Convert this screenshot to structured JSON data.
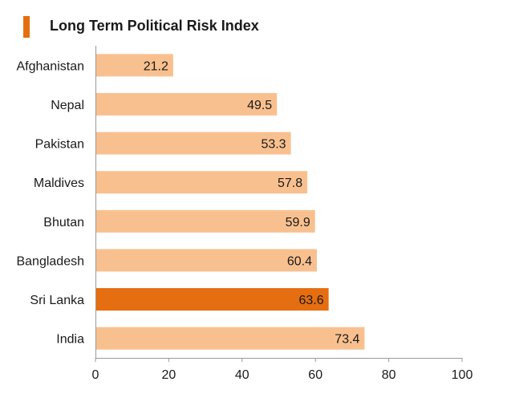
{
  "title": "Long Term Political Risk Index",
  "colors": {
    "bar": "#f9c08f",
    "highlight": "#e56e10",
    "title_accent": "#e56e10",
    "axis": "#999999",
    "text": "#1a1a1a"
  },
  "chart_data": {
    "type": "bar",
    "orientation": "horizontal",
    "title": "Long Term Political Risk Index",
    "categories": [
      "Afghanistan",
      "Nepal",
      "Pakistan",
      "Maldives",
      "Bhutan",
      "Bangladesh",
      "Sri Lanka",
      "India"
    ],
    "values": [
      21.2,
      49.5,
      53.3,
      57.8,
      59.9,
      60.4,
      63.6,
      73.4
    ],
    "value_labels": [
      "21.2",
      "49.5",
      "53.3",
      "57.8",
      "59.9",
      "60.4",
      "63.6",
      "73.4"
    ],
    "highlight": "Sri Lanka",
    "xlim": [
      0,
      100
    ],
    "xticks": [
      0,
      20,
      40,
      60,
      80,
      100
    ],
    "xtick_labels": [
      "0",
      "20",
      "40",
      "60",
      "80",
      "100"
    ],
    "grid": false,
    "legend": "none",
    "xlabel": "",
    "ylabel": ""
  }
}
